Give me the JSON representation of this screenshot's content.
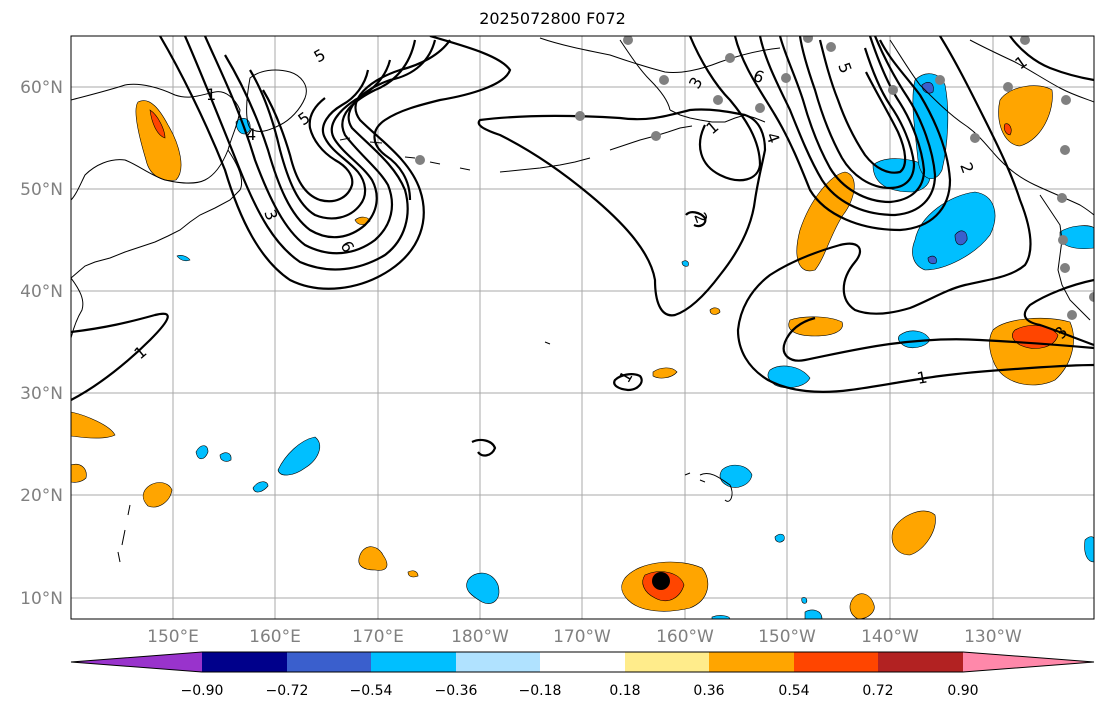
{
  "title": "2025072800 F072",
  "latitude_labels": [
    "60°N",
    "50°N",
    "40°N",
    "30°N",
    "20°N",
    "10°N"
  ],
  "longitude_labels": [
    "150°E",
    "160°E",
    "170°E",
    "180°W",
    "170°W",
    "160°W",
    "150°W",
    "140°W",
    "130°W"
  ],
  "contour_labels": [
    "5",
    "4",
    "3",
    "6",
    "5",
    "1",
    "3",
    "6",
    "4",
    "1",
    "2",
    "1",
    "1",
    "1",
    "5",
    "3",
    "1",
    "2"
  ],
  "colorbar": {
    "ticks": [
      "−0.90",
      "−0.72",
      "−0.54",
      "−0.36",
      "−0.18",
      "0.18",
      "0.36",
      "0.54",
      "0.72",
      "0.90"
    ],
    "colors": [
      "#9933cc",
      "#00008b",
      "#3a5fcd",
      "#00bfff",
      "#b0e2ff",
      "#ffffff",
      "#ffec8b",
      "#ffa500",
      "#ff4500",
      "#b22222",
      "#ff88aa"
    ]
  }
}
